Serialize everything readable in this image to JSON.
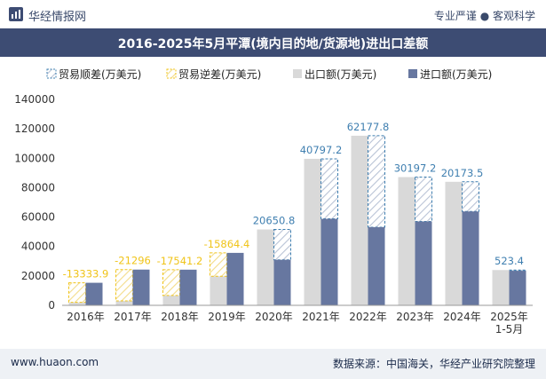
{
  "header": {
    "brand": "华经情报网",
    "tagline": "专业严谨 ● 客观科学"
  },
  "title": "2016-2025年5月平潭(境内目的地/货源地)进出口差额",
  "footer": {
    "website": "www.huaon.com",
    "source": "数据来源：中国海关，华经产业研究院整理"
  },
  "colors": {
    "header_bg": "#3d4c73",
    "export_bar": "#d9d9d9",
    "import_bar": "#6777a0",
    "surplus": "#3f7fb0",
    "deficit": "#f0c419"
  },
  "chart_data": {
    "type": "bar",
    "categories": [
      "2016年",
      "2017年",
      "2018年",
      "2019年",
      "2020年",
      "2021年",
      "2022年",
      "2023年",
      "2024年",
      "2025年\n1-5月"
    ],
    "series": [
      {
        "name": "贸易顺差(万美元)",
        "values": [
          null,
          null,
          null,
          null,
          20650.8,
          40797.2,
          62177.8,
          30197.2,
          20173.5,
          523.4
        ]
      },
      {
        "name": "贸易逆差(万美元)",
        "values": [
          -13333.9,
          -21296,
          -17541.2,
          -15864.4,
          null,
          null,
          null,
          null,
          null,
          null
        ]
      },
      {
        "name": "出口额(万美元)",
        "values": [
          2000,
          3000,
          6700,
          19800,
          51600,
          99600,
          115300,
          87200,
          84000,
          24000
        ]
      },
      {
        "name": "进口额(万美元)",
        "values": [
          15333.9,
          24296,
          24241.2,
          35664.4,
          30949.2,
          58802.8,
          53122.2,
          57002.8,
          63826.5,
          23476.6
        ]
      }
    ],
    "data_labels": [
      "-13333.9",
      "-21296",
      "-17541.2",
      "-15864.4",
      "20650.8",
      "40797.2",
      "62177.8",
      "30197.2",
      "20173.5",
      "523.4"
    ],
    "ylim": [
      0,
      140000
    ],
    "yticks": [
      0,
      20000,
      40000,
      60000,
      80000,
      100000,
      120000,
      140000
    ],
    "legend_position": "top",
    "grid": false
  }
}
